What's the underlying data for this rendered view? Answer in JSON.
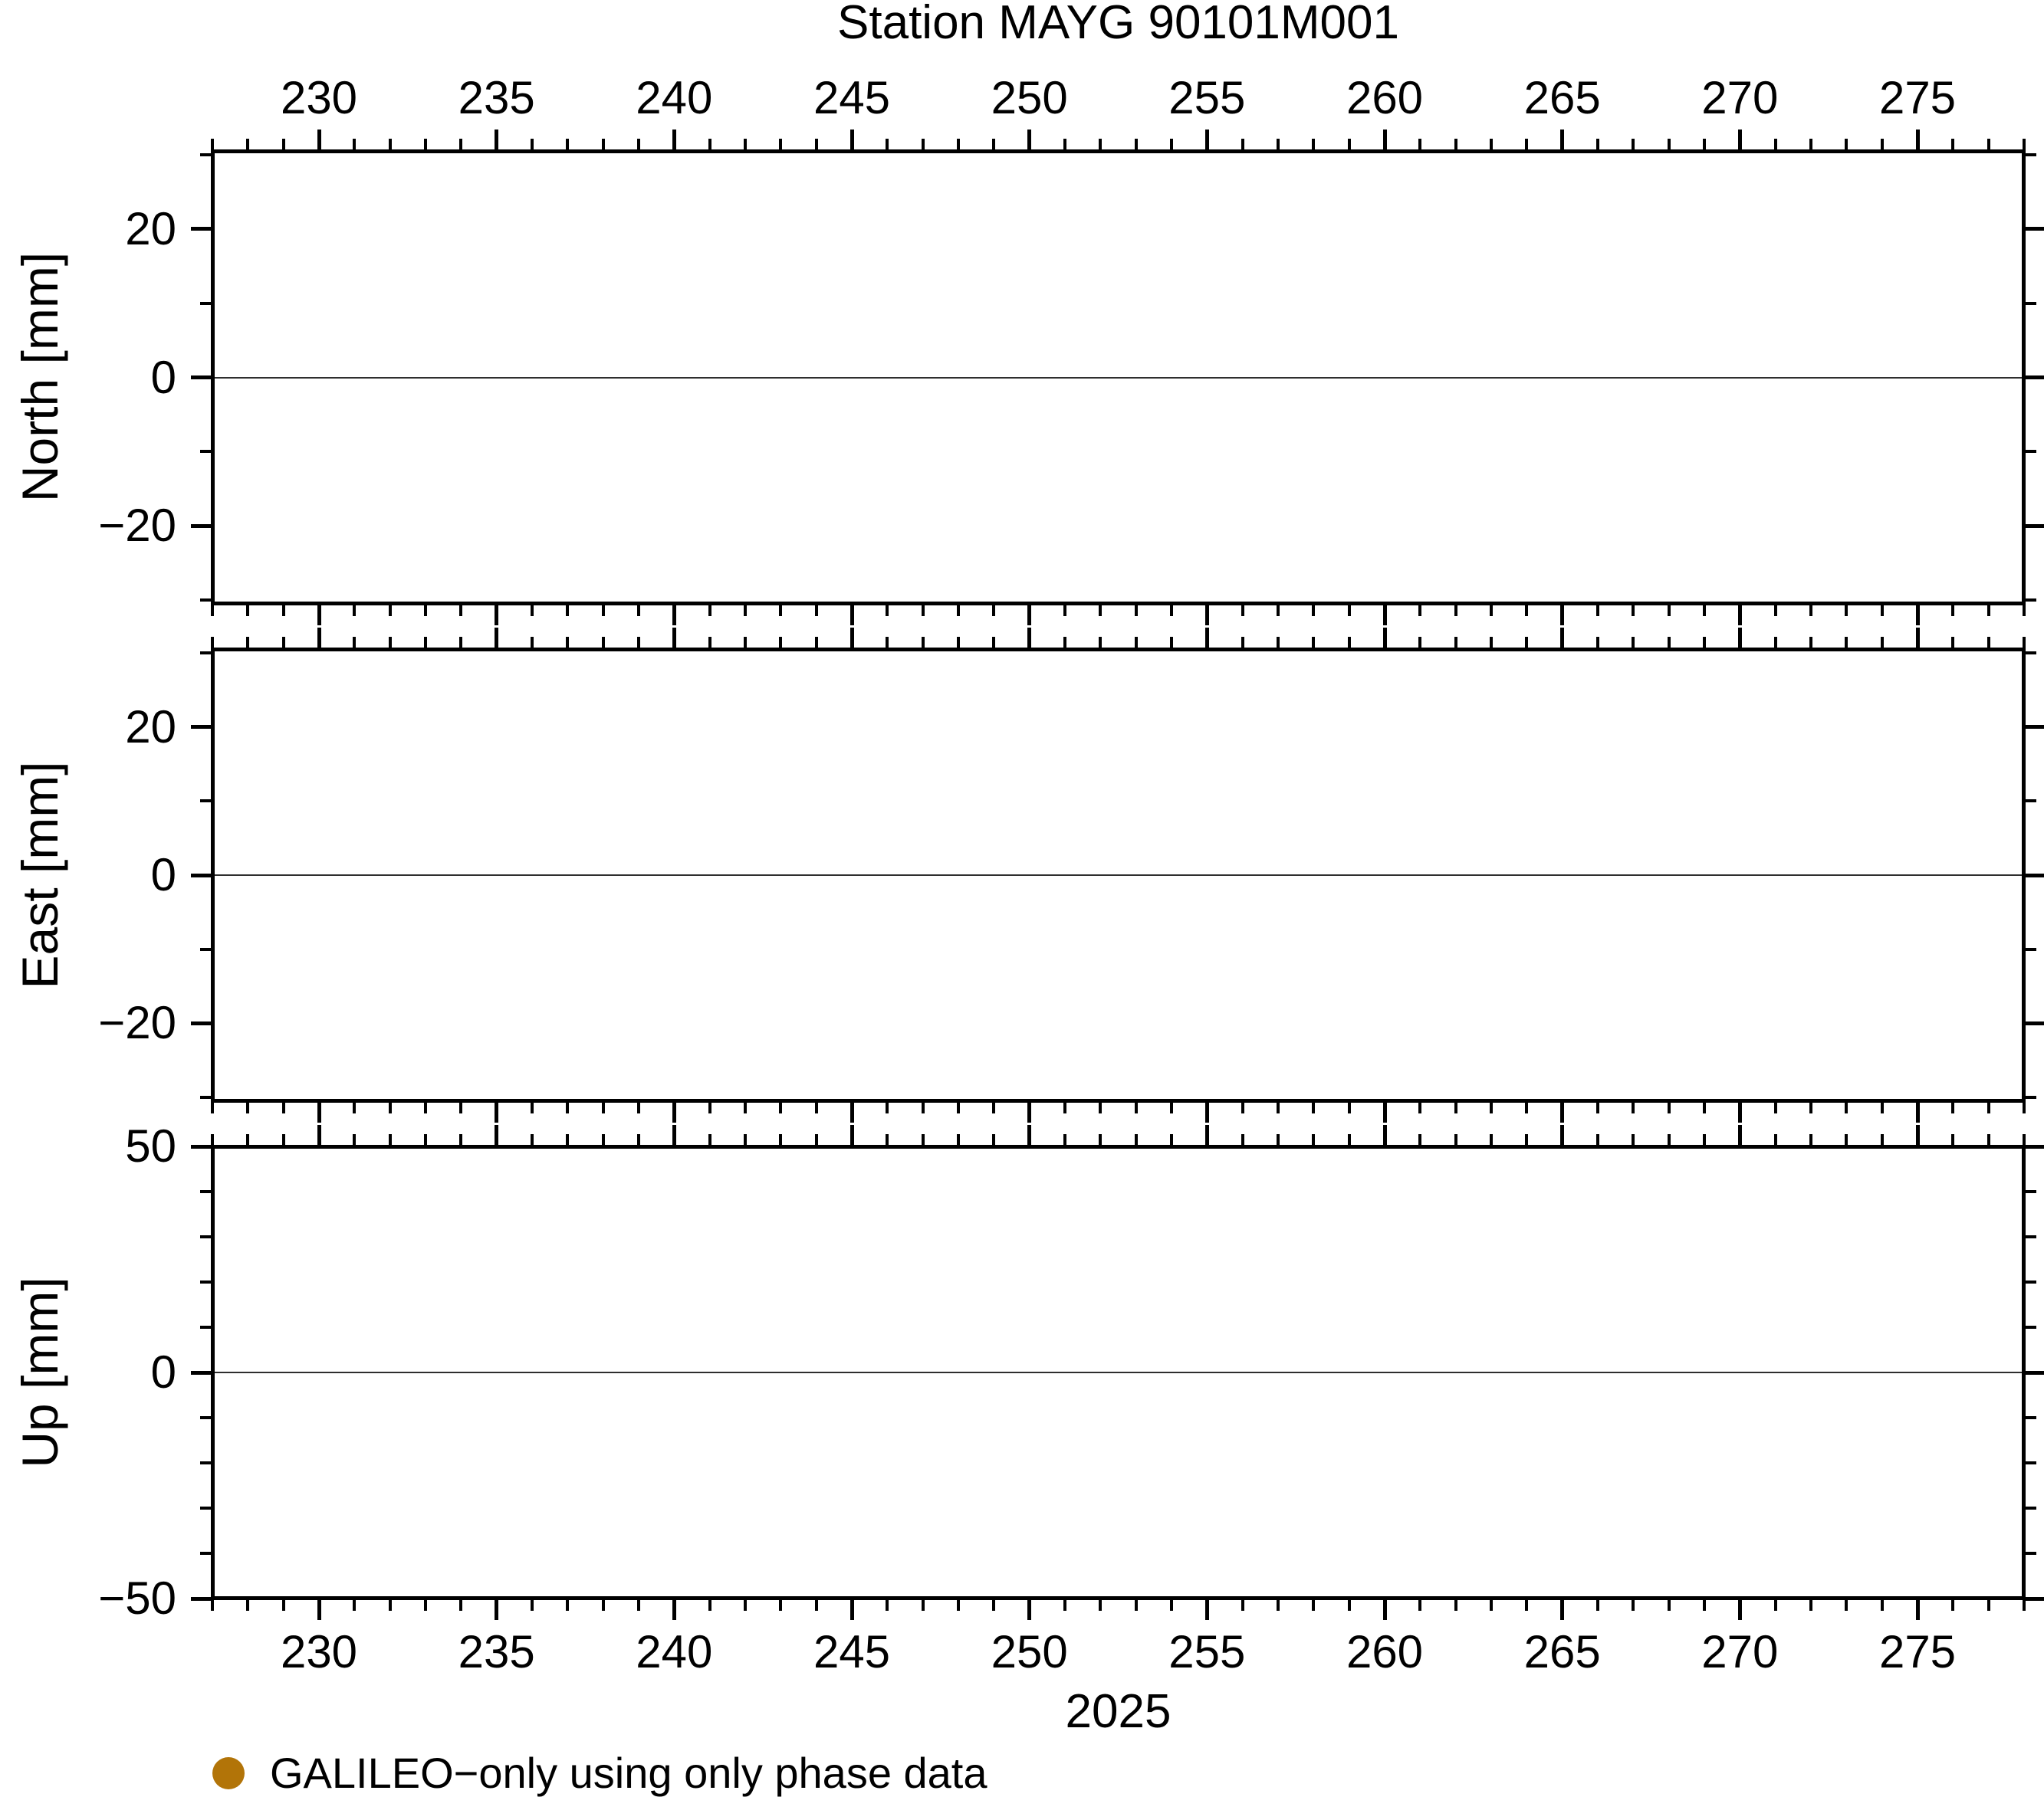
{
  "title": "Station MAYG 90101M001",
  "chart_data": {
    "type": "scatter",
    "title": "Station MAYG 90101M001",
    "x_axis": {
      "label": "2025",
      "units": "day of year",
      "range": [
        227,
        278
      ],
      "major_ticks": [
        230,
        235,
        240,
        245,
        250,
        255,
        260,
        265,
        270,
        275
      ],
      "minor_tick_step": 1,
      "tick_label_rows": [
        "top",
        "bottom"
      ]
    },
    "panels": [
      {
        "id": "north",
        "ylabel": "North [mm]",
        "range": [
          -30.5,
          30.5
        ],
        "major_ticks": [
          20,
          0,
          -20
        ],
        "minor_tick_step": 10,
        "zero_line": true
      },
      {
        "id": "east",
        "ylabel": "East [mm]",
        "range": [
          -30.5,
          30.5
        ],
        "major_ticks": [
          20,
          0,
          -20
        ],
        "minor_tick_step": 10,
        "zero_line": true
      },
      {
        "id": "up",
        "ylabel": "Up [mm]",
        "range": [
          -50,
          50
        ],
        "major_ticks": [
          50,
          0,
          -50
        ],
        "minor_tick_step": 10,
        "zero_line": true
      }
    ],
    "series": [
      {
        "name": "GALILEO−only using only phase data",
        "marker": "circle",
        "color": "#b27408",
        "data": {
          "north": [],
          "east": [],
          "up": []
        }
      }
    ],
    "grid": "zero-line-only",
    "legend_position": "below-plot-left",
    "frame_color": "#000000",
    "zero_line_color": "#2e2e2e",
    "background_color": "#ffffff"
  }
}
